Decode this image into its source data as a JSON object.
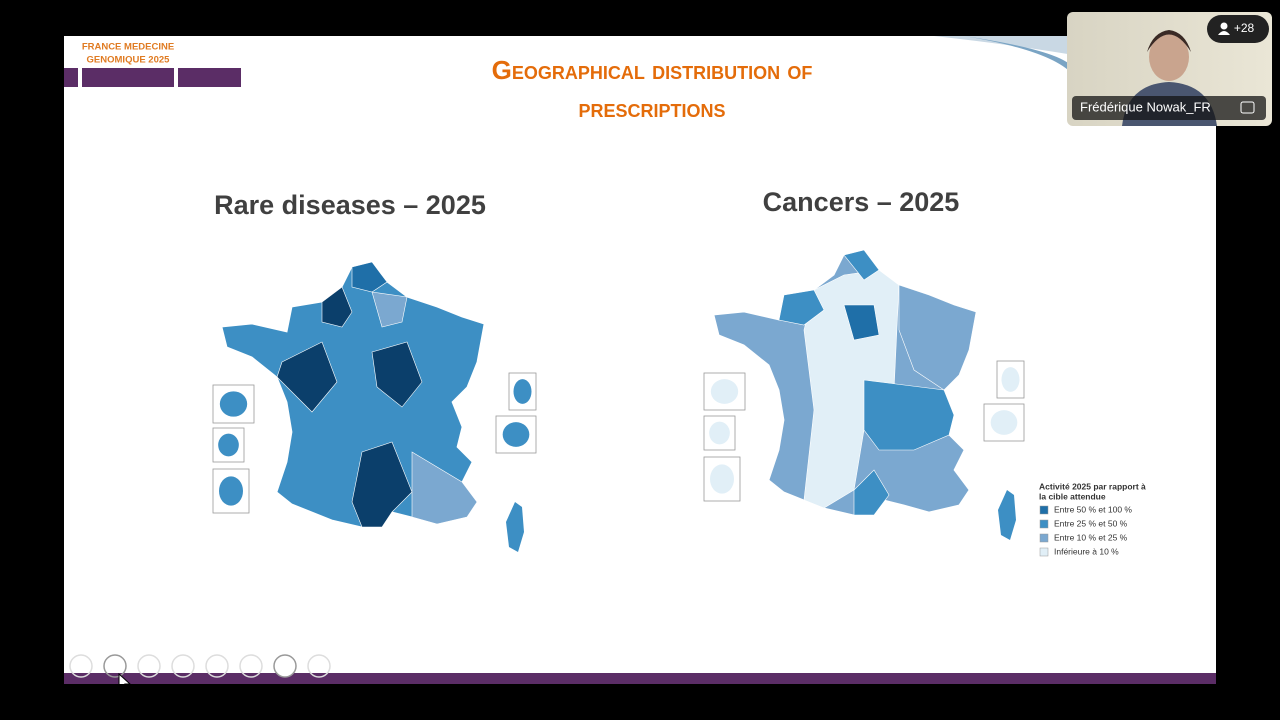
{
  "meeting": {
    "participant_count": "+28",
    "participant_name": "Frédérique Nowak_FR"
  },
  "slide": {
    "logo": {
      "line1": "FRANCE MEDECINE",
      "line2": "GENOMIQUE 2025"
    },
    "title_line1": "Geographical distribution of",
    "title_line2": "prescriptions",
    "maps": [
      {
        "title": "Rare diseases – 2025"
      },
      {
        "title": "Cancers – 2025"
      }
    ],
    "legend": {
      "title_line1": "Activité 2025 par rapport à",
      "title_line2": "la cible attendue",
      "items": [
        {
          "label": "Entre 50 % et 100 %",
          "color": "#1f6fa8"
        },
        {
          "label": "Entre 25 % et 50 %",
          "color": "#3d8fc4"
        },
        {
          "label": "Entre 10 % et 25 %",
          "color": "#7ba8d0"
        },
        {
          "label": "Inférieure à 10 %",
          "color": "#e1eff7"
        }
      ]
    }
  }
}
